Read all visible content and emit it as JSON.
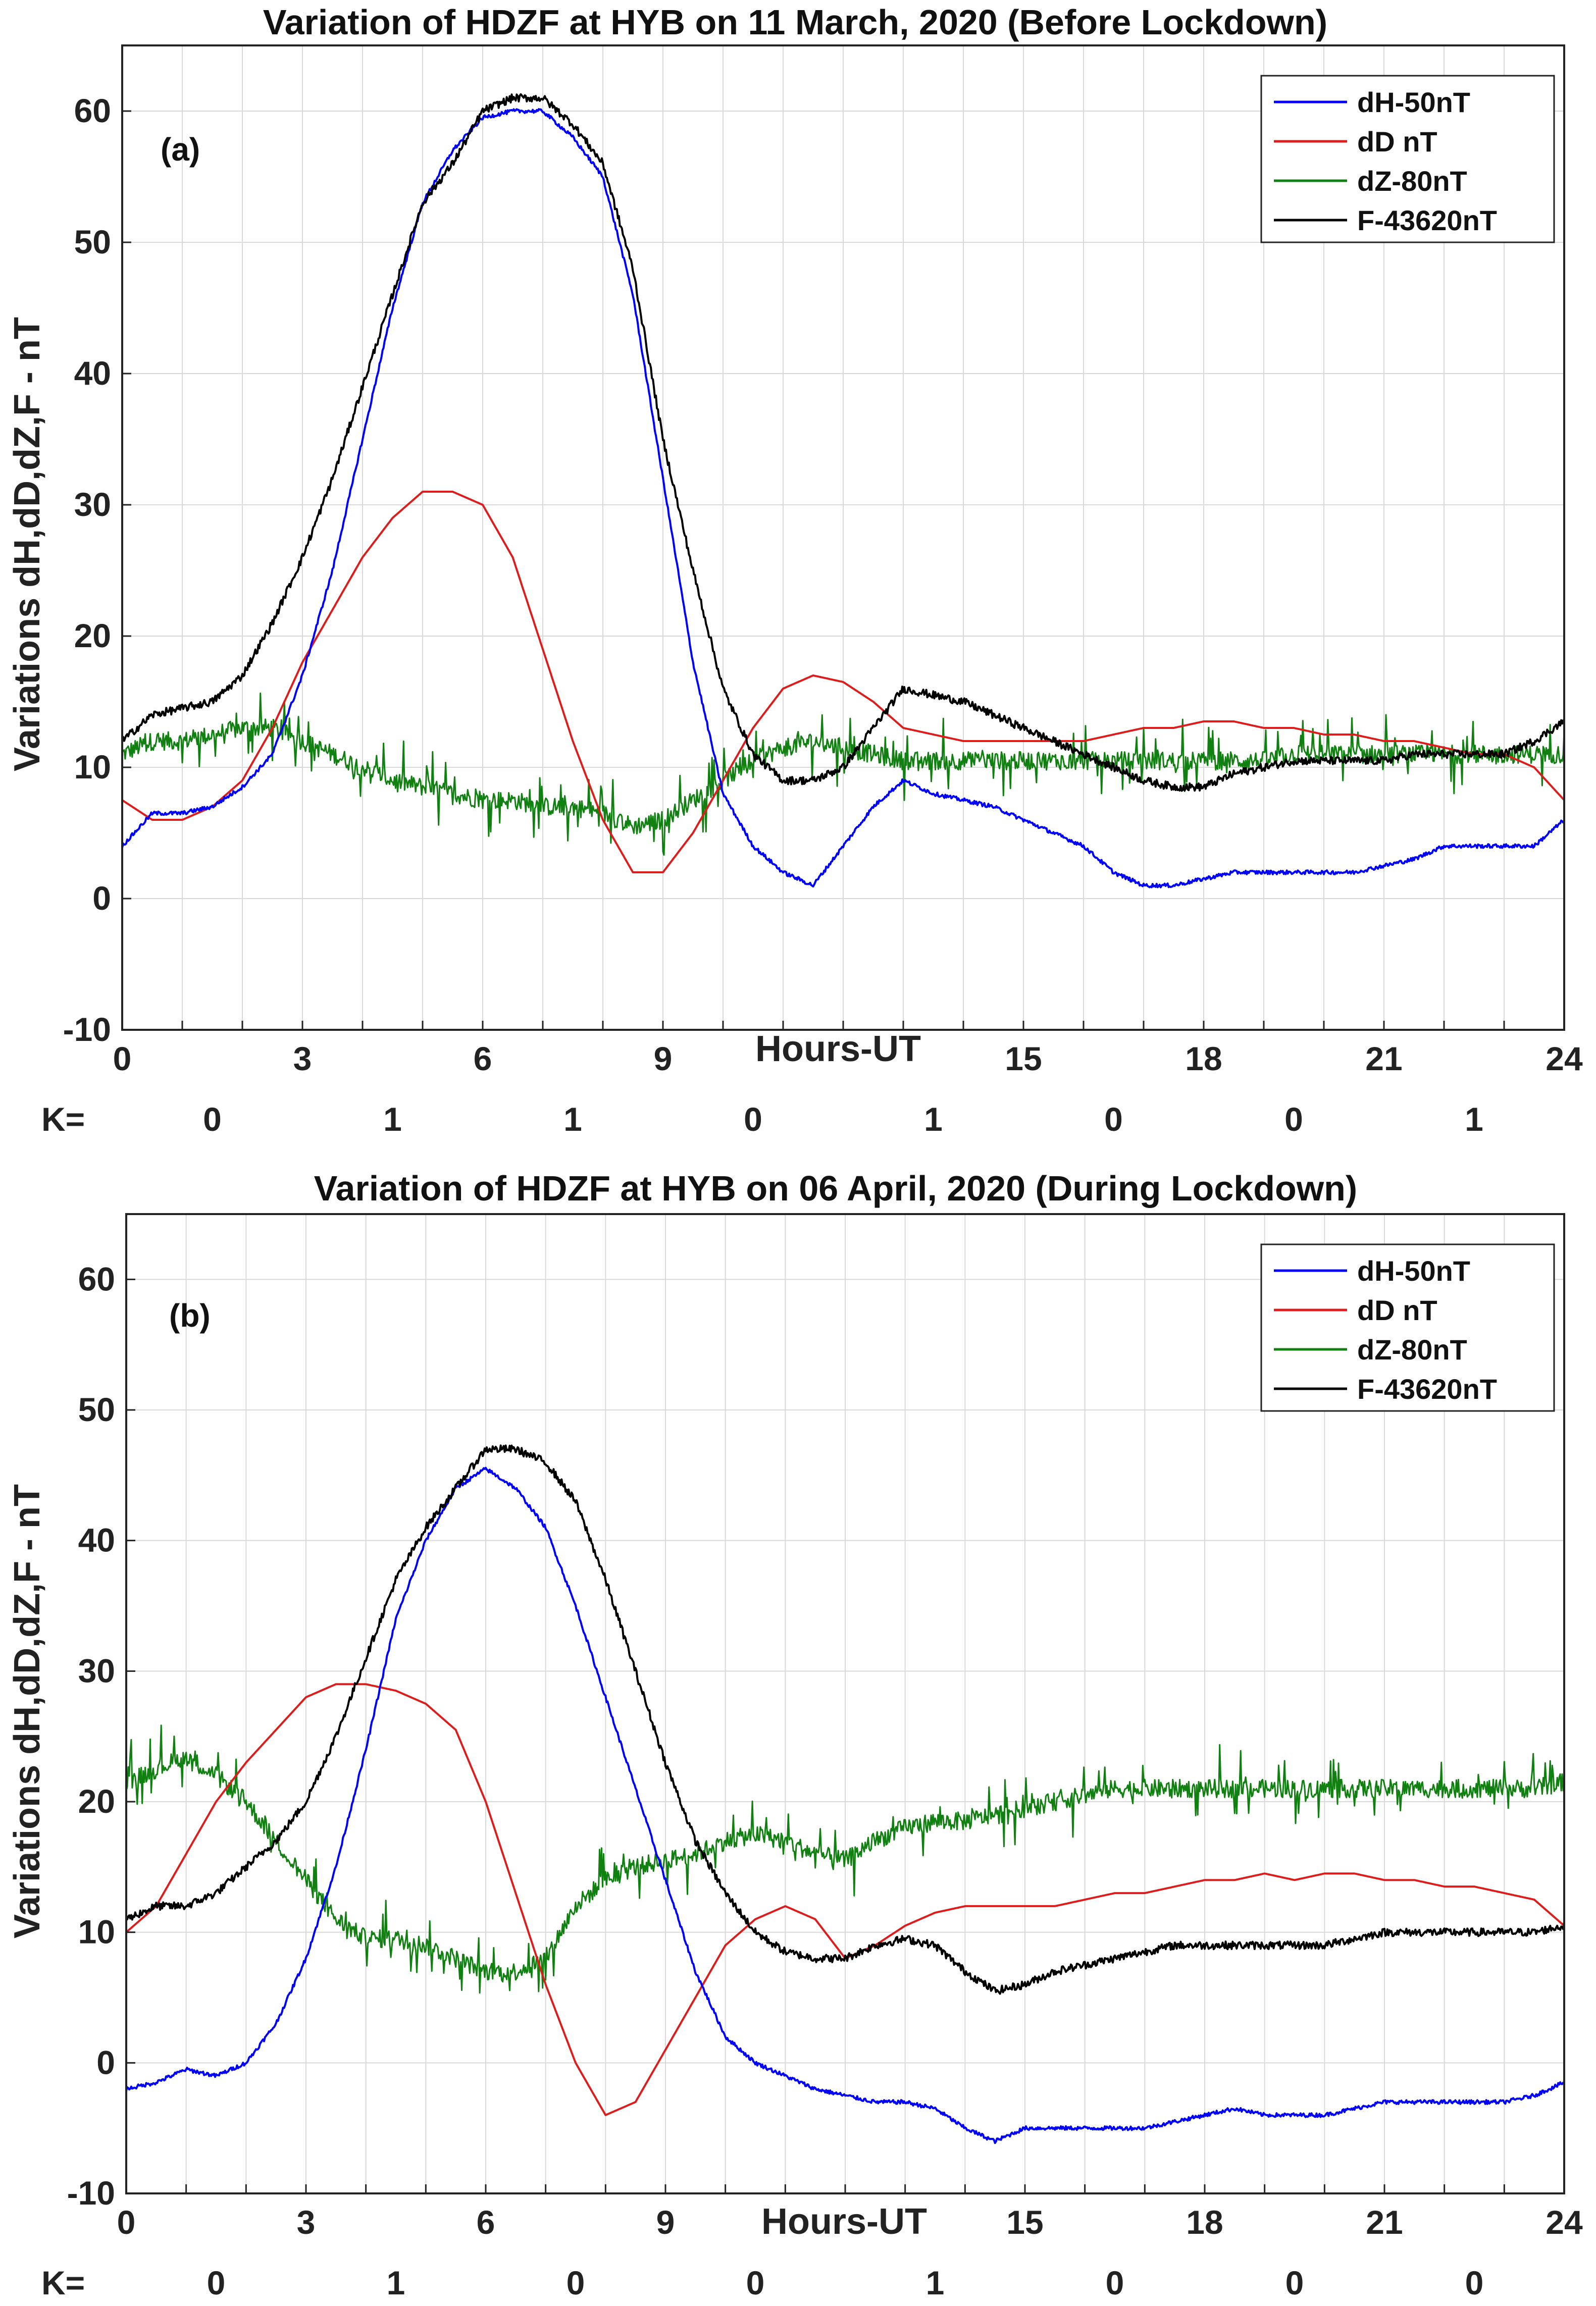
{
  "chart_data": [
    {
      "type": "line",
      "title": "Variation of HDZF at HYB on 11 March, 2020 (Before Lockdown)",
      "panel_label": "(a)",
      "xlabel": "Hours-UT",
      "ylabel": "Variations dH,dD,dZ,F - nT",
      "xlim": [
        0,
        24
      ],
      "ylim": [
        -10,
        65
      ],
      "x_tick_labels": [
        "0",
        "3",
        "6",
        "9",
        "15",
        "18",
        "21",
        "24"
      ],
      "y_tick_labels": [
        "-10",
        "0",
        "10",
        "20",
        "30",
        "40",
        "50",
        "60"
      ],
      "k_prefix": "K=",
      "k_values": [
        "0",
        "1",
        "1",
        "0",
        "1",
        "0",
        "0",
        "1"
      ],
      "legend": "top-right",
      "grid": true,
      "series": [
        {
          "name": "dH-50nT",
          "color": "#0000ff",
          "noise": 0.3,
          "x": [
            0,
            0.5,
            1,
            1.5,
            2,
            2.5,
            3,
            3.5,
            4,
            4.5,
            5,
            5.5,
            6,
            6.5,
            7,
            7.5,
            8,
            8.5,
            9,
            9.5,
            10,
            10.5,
            11,
            11.5,
            12,
            12.5,
            13,
            13.5,
            14,
            14.5,
            15,
            15.5,
            16,
            16.5,
            17,
            17.5,
            18,
            18.5,
            19,
            19.5,
            20,
            20.5,
            21,
            21.5,
            22,
            22.5,
            23,
            23.5,
            24
          ],
          "y": [
            4,
            6.5,
            6.5,
            7,
            8.5,
            11,
            17,
            25,
            35,
            45,
            53,
            57,
            59.5,
            60,
            60,
            58,
            55,
            46,
            32,
            18,
            8,
            4,
            2,
            1,
            4,
            7,
            9,
            8,
            7.5,
            7,
            6,
            5,
            4,
            2,
            1,
            1,
            1.5,
            2,
            2,
            2,
            2,
            2,
            2.5,
            3,
            4,
            4,
            4,
            4,
            6
          ]
        },
        {
          "name": "dD nT",
          "color": "#dd1c1c",
          "noise": 0,
          "x": [
            0,
            0.5,
            1,
            1.5,
            2,
            2.5,
            3,
            3.5,
            4,
            4.5,
            5,
            5.5,
            6,
            6.5,
            7,
            7.5,
            8,
            8.5,
            9,
            9.5,
            10,
            10.5,
            11,
            11.5,
            12,
            12.5,
            13,
            13.5,
            14,
            14.5,
            15,
            15.5,
            16,
            16.5,
            17,
            17.5,
            18,
            18.5,
            19,
            19.5,
            20,
            20.5,
            21,
            21.5,
            22,
            22.5,
            23,
            23.5,
            24
          ],
          "y": [
            7.5,
            6,
            6,
            7,
            9,
            13,
            18,
            22,
            26,
            29,
            31,
            31,
            30,
            26,
            19,
            12,
            6,
            2,
            2,
            5,
            9,
            13,
            16,
            17,
            16.5,
            15,
            13,
            12.5,
            12,
            12,
            12,
            12,
            12,
            12.5,
            13,
            13,
            13.5,
            13.5,
            13,
            13,
            12.5,
            12.5,
            12,
            12,
            11.5,
            11,
            11,
            10,
            7.5
          ]
        },
        {
          "name": "dZ-80nT",
          "color": "#108010",
          "noise": 1.4,
          "x": [
            0,
            0.5,
            1,
            1.5,
            2,
            2.5,
            3,
            3.5,
            4,
            4.5,
            5,
            5.5,
            6,
            6.5,
            7,
            7.5,
            8,
            8.5,
            9,
            9.5,
            10,
            10.5,
            11,
            11.5,
            12,
            12.5,
            13,
            13.5,
            14,
            14.5,
            15,
            15.5,
            16,
            16.5,
            17,
            17.5,
            18,
            18.5,
            19,
            19.5,
            20,
            20.5,
            21,
            21.5,
            22,
            22.5,
            23,
            23.5,
            24
          ],
          "y": [
            11,
            12,
            12,
            12.5,
            13,
            13,
            12,
            11,
            10,
            9,
            8.5,
            8,
            7.5,
            7.5,
            7,
            7,
            6.5,
            5.5,
            6,
            7.5,
            9,
            10.5,
            11.5,
            12,
            11.5,
            11,
            10.5,
            10.5,
            10.5,
            10.5,
            10.5,
            10.5,
            10.5,
            10.5,
            10.5,
            10.5,
            10.5,
            10.5,
            10.5,
            11,
            11,
            11,
            11,
            11,
            11,
            11,
            11,
            11,
            11
          ]
        },
        {
          "name": "F-43620nT",
          "color": "#000000",
          "noise": 0.6,
          "x": [
            0,
            0.5,
            1,
            1.5,
            2,
            2.5,
            3,
            3.5,
            4,
            4.5,
            5,
            5.5,
            6,
            6.5,
            7,
            7.5,
            8,
            8.5,
            9,
            9.5,
            10,
            10.5,
            11,
            11.5,
            12,
            12.5,
            13,
            13.5,
            14,
            14.5,
            15,
            15.5,
            16,
            16.5,
            17,
            17.5,
            18,
            18.5,
            19,
            19.5,
            20,
            20.5,
            21,
            21.5,
            22,
            22.5,
            23,
            23.5,
            24
          ],
          "y": [
            12,
            14,
            14.5,
            15,
            17,
            21,
            26,
            32,
            39,
            46,
            53,
            56,
            60,
            61,
            61,
            59,
            56,
            48,
            35,
            25,
            16,
            11,
            9,
            9,
            10,
            13,
            16,
            15.5,
            15,
            14,
            13,
            12,
            11,
            10,
            9,
            8.5,
            8.5,
            9.5,
            10,
            10.5,
            10.5,
            10.5,
            10.5,
            11,
            11,
            11,
            11,
            12,
            13.5
          ]
        }
      ]
    },
    {
      "type": "line",
      "title": "Variation of HDZF at HYB on 06 April, 2020 (During Lockdown)",
      "panel_label": "(b)",
      "xlabel": "Hours-UT",
      "ylabel": "Variations dH,dD,dZ,F - nT",
      "xlim": [
        0,
        24
      ],
      "ylim": [
        -10,
        65
      ],
      "x_tick_labels": [
        "0",
        "3",
        "6",
        "9",
        "15",
        "18",
        "21",
        "24"
      ],
      "y_tick_labels": [
        "-10",
        "0",
        "10",
        "20",
        "30",
        "40",
        "50",
        "60"
      ],
      "k_prefix": "K=",
      "k_values": [
        "0",
        "1",
        "0",
        "0",
        "1",
        "0",
        "0",
        "0"
      ],
      "legend": "top-right",
      "grid": true,
      "series": [
        {
          "name": "dH-50nT",
          "color": "#0000ff",
          "noise": 0.3,
          "x": [
            0,
            0.5,
            1,
            1.5,
            2,
            2.5,
            3,
            3.5,
            4,
            4.5,
            5,
            5.5,
            6,
            6.5,
            7,
            7.5,
            8,
            8.5,
            9,
            9.5,
            10,
            10.5,
            11,
            11.5,
            12,
            12.5,
            13,
            13.5,
            14,
            14.5,
            15,
            15.5,
            16,
            16.5,
            17,
            17.5,
            18,
            18.5,
            19,
            19.5,
            20,
            20.5,
            21,
            21.5,
            22,
            22.5,
            23,
            23.5,
            24
          ],
          "y": [
            -2,
            -1.5,
            -0.5,
            -1,
            0,
            3,
            8,
            15,
            24,
            34,
            40,
            44,
            45.5,
            44,
            41,
            35,
            28,
            21,
            14,
            7,
            2,
            0,
            -1,
            -2,
            -2.5,
            -3,
            -3,
            -3.5,
            -5,
            -6,
            -5,
            -5,
            -5,
            -5,
            -5,
            -4.5,
            -4,
            -3.5,
            -4,
            -4,
            -4,
            -3.5,
            -3,
            -3,
            -3,
            -3,
            -3,
            -2.5,
            -1.5
          ]
        },
        {
          "name": "dD nT",
          "color": "#dd1c1c",
          "noise": 0,
          "x": [
            0,
            0.5,
            1,
            1.5,
            2,
            2.5,
            3,
            3.5,
            4,
            4.5,
            5,
            5.5,
            6,
            6.5,
            7,
            7.5,
            8,
            8.5,
            9,
            9.5,
            10,
            10.5,
            11,
            11.5,
            12,
            12.5,
            13,
            13.5,
            14,
            14.5,
            15,
            15.5,
            16,
            16.5,
            17,
            17.5,
            18,
            18.5,
            19,
            19.5,
            20,
            20.5,
            21,
            21.5,
            22,
            22.5,
            23,
            23.5,
            24
          ],
          "y": [
            10,
            12,
            16,
            20,
            23,
            25.5,
            28,
            29,
            29,
            28.5,
            27.5,
            25.5,
            20,
            13,
            6,
            0,
            -4,
            -3,
            1,
            5,
            9,
            11,
            12,
            11,
            8,
            9,
            10.5,
            11.5,
            12,
            12,
            12,
            12,
            12.5,
            13,
            13,
            13.5,
            14,
            14,
            14.5,
            14,
            14.5,
            14.5,
            14,
            14,
            13.5,
            13.5,
            13,
            12.5,
            10.5
          ]
        },
        {
          "name": "dZ-80nT",
          "color": "#108010",
          "noise": 1.4,
          "x": [
            0,
            0.5,
            1,
            1.5,
            2,
            2.5,
            3,
            3.5,
            4,
            4.5,
            5,
            5.5,
            6,
            6.5,
            7,
            7.5,
            8,
            8.5,
            9,
            9.5,
            10,
            10.5,
            11,
            11.5,
            12,
            12.5,
            13,
            13.5,
            14,
            14.5,
            15,
            15.5,
            16,
            16.5,
            17,
            17.5,
            18,
            18.5,
            19,
            19.5,
            20,
            20.5,
            21,
            21.5,
            22,
            22.5,
            23,
            23.5,
            24
          ],
          "y": [
            21.5,
            22.5,
            23.5,
            22,
            20,
            17,
            14,
            11,
            9.5,
            9.5,
            9,
            8,
            7,
            7,
            8,
            12,
            14,
            15,
            15.5,
            16,
            17,
            17.5,
            17,
            16,
            15.5,
            17,
            18,
            18.5,
            18.5,
            19,
            19.5,
            20,
            20.5,
            21,
            21,
            21,
            21,
            21,
            21,
            21,
            21,
            21,
            21,
            21,
            21,
            21,
            21,
            21,
            21.5
          ]
        },
        {
          "name": "F-43620nT",
          "color": "#000000",
          "noise": 0.6,
          "x": [
            0,
            0.5,
            1,
            1.5,
            2,
            2.5,
            3,
            3.5,
            4,
            4.5,
            5,
            5.5,
            6,
            6.5,
            7,
            7.5,
            8,
            8.5,
            9,
            9.5,
            10,
            10.5,
            11,
            11.5,
            12,
            12.5,
            13,
            13.5,
            14,
            14.5,
            15,
            15.5,
            16,
            16.5,
            17,
            17.5,
            18,
            18.5,
            19,
            19.5,
            20,
            20.5,
            21,
            21.5,
            22,
            22.5,
            23,
            23.5,
            24
          ],
          "y": [
            11,
            12,
            12,
            13,
            15,
            17,
            20,
            25,
            31,
            37,
            41,
            44,
            47,
            47,
            46,
            43,
            37,
            30,
            23,
            17,
            13,
            10,
            8.5,
            8,
            8,
            9,
            9.5,
            9,
            7,
            5.5,
            6,
            7,
            7.5,
            8,
            8.5,
            9,
            9,
            9,
            9,
            9,
            9,
            9.5,
            10,
            10,
            10,
            10,
            10,
            10,
            10.5
          ]
        }
      ]
    }
  ]
}
